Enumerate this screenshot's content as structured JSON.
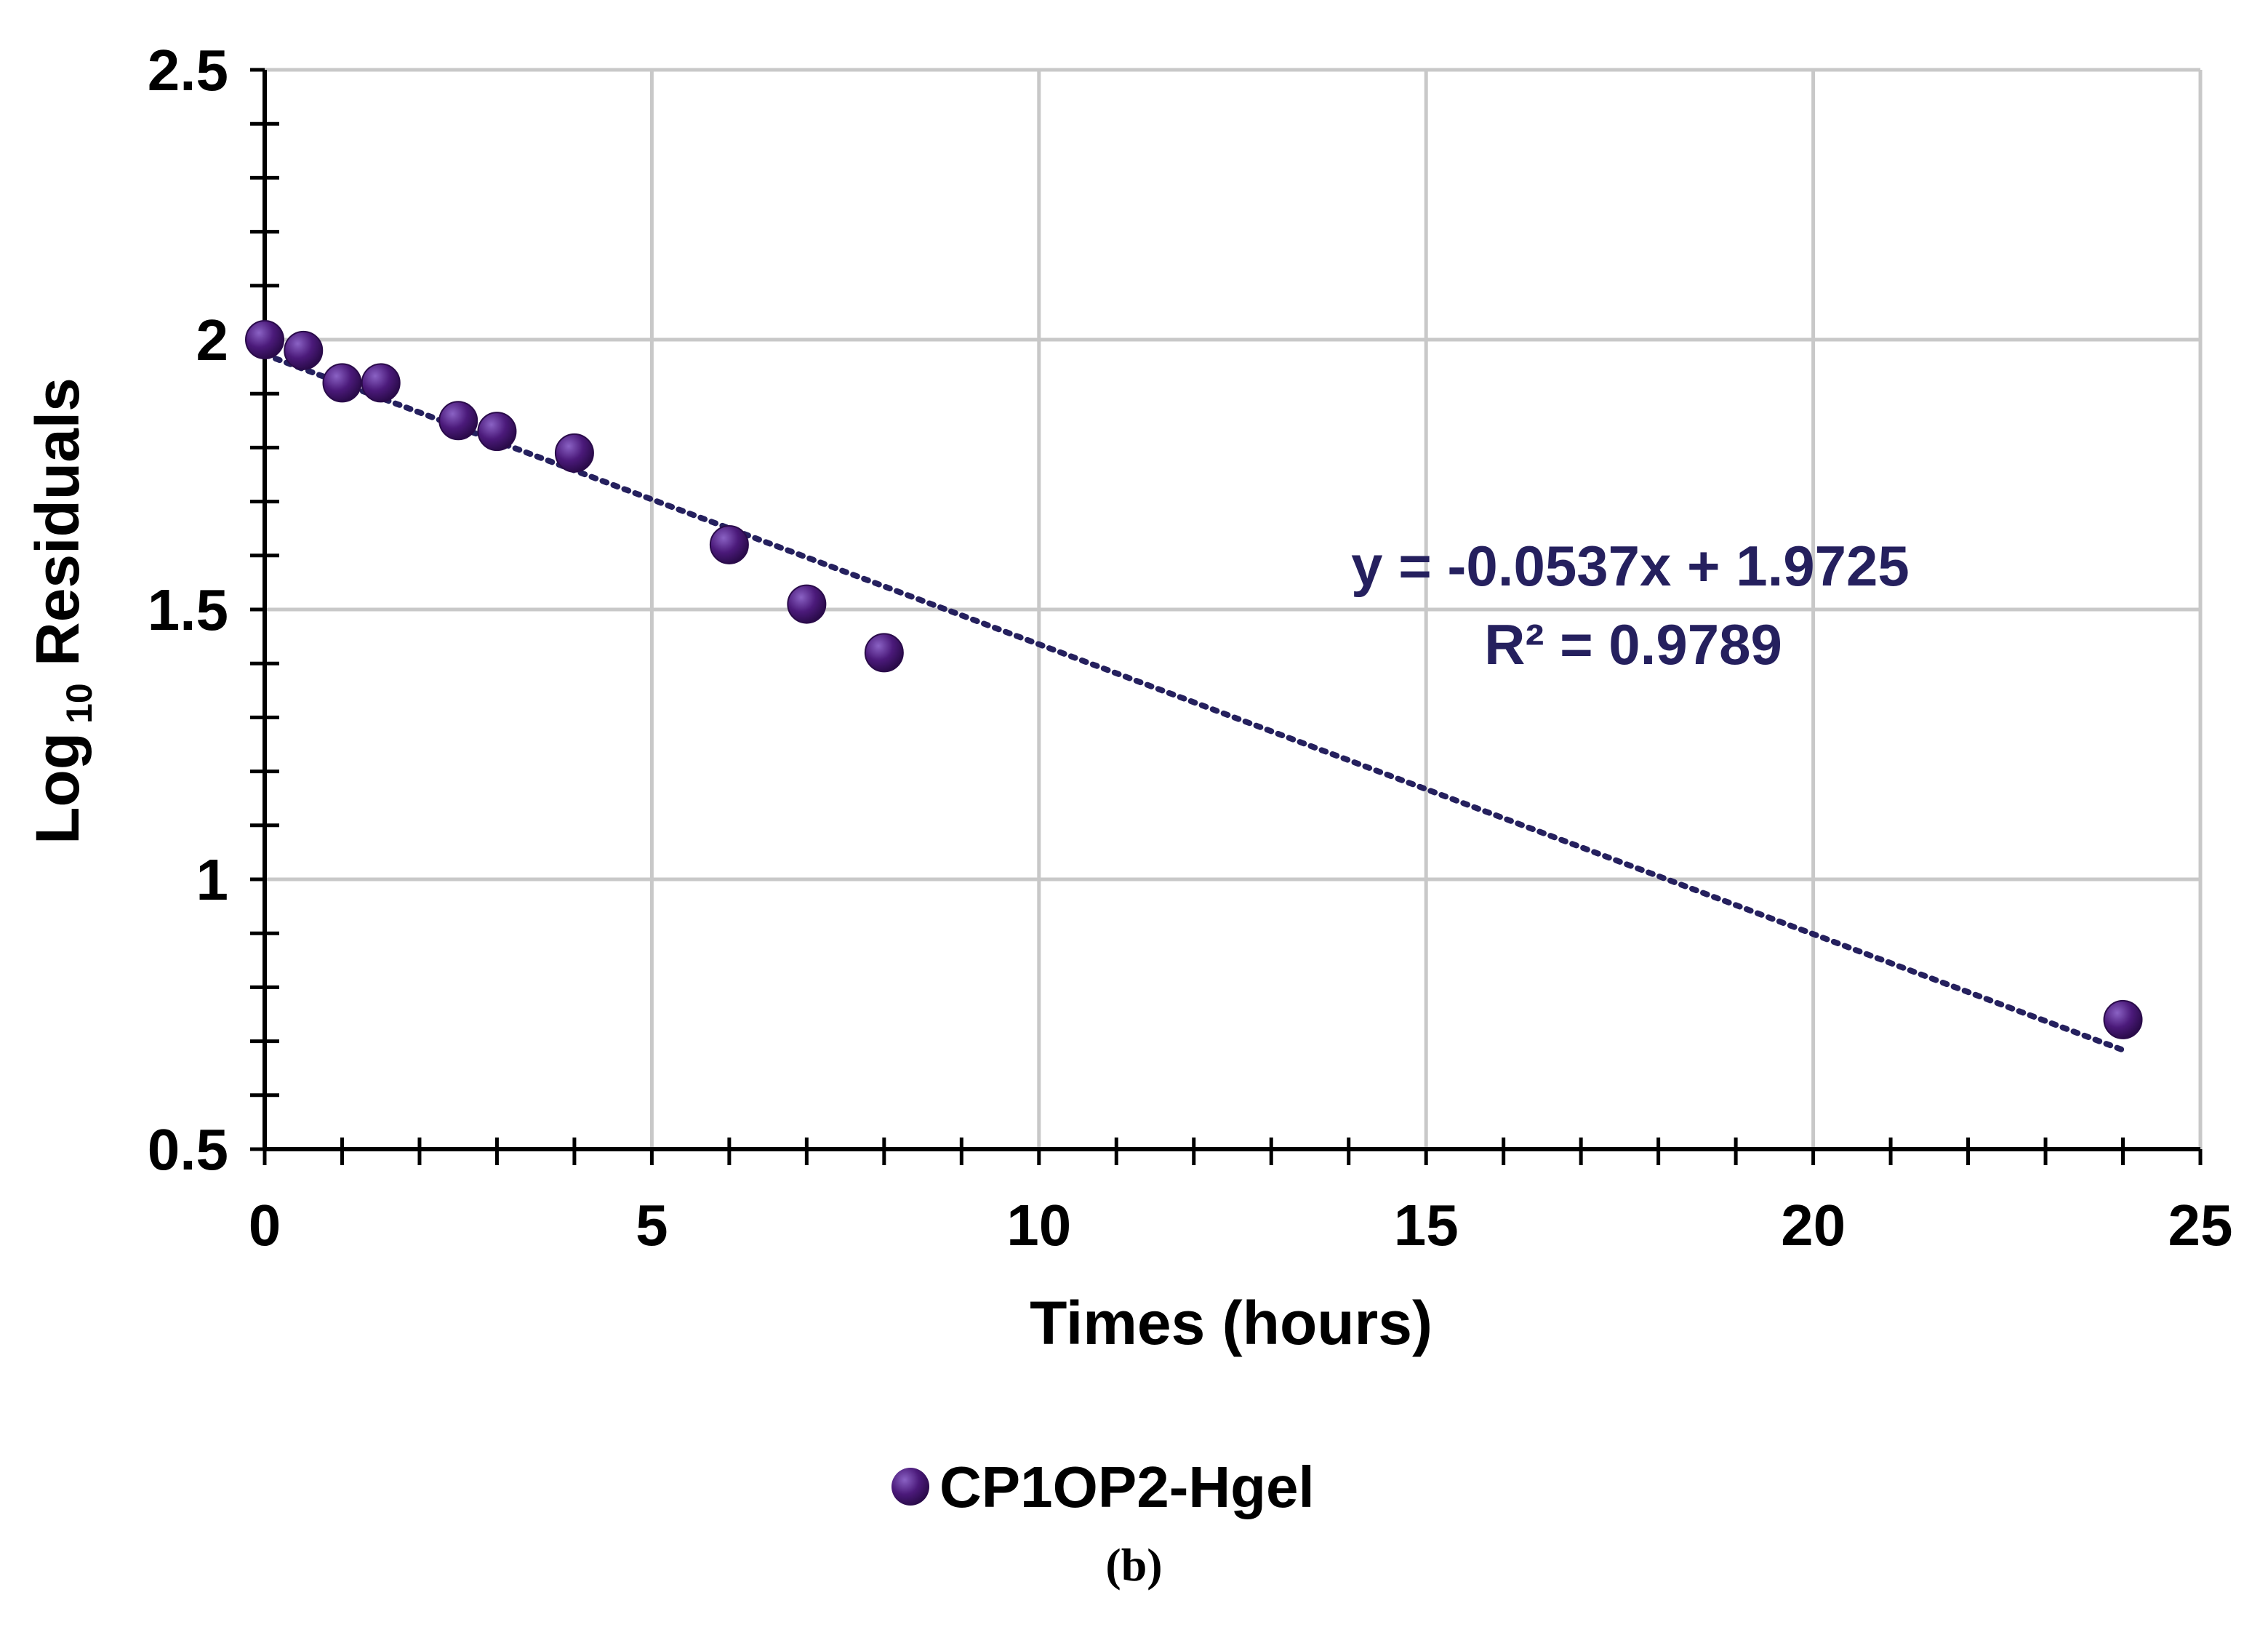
{
  "chart_data": {
    "type": "scatter",
    "title": "",
    "xlabel": "Times (hours)",
    "ylabel_main": "Log",
    "ylabel_sub": "10",
    "ylabel_tail": " Residuals",
    "xlim": [
      0,
      25
    ],
    "ylim": [
      0.5,
      2.5
    ],
    "x_ticks": [
      0,
      5,
      10,
      15,
      20,
      25
    ],
    "y_ticks": [
      0.5,
      1,
      1.5,
      2,
      2.5
    ],
    "x_tick_labels": [
      "0",
      "5",
      "10",
      "15",
      "20",
      "25"
    ],
    "y_tick_labels": [
      "0.5",
      "1",
      "1.5",
      "2",
      "2.5"
    ],
    "x_minor_step": 0.5,
    "y_minor_step": 0.1,
    "grid": true,
    "legend_position": "bottom-center",
    "series": [
      {
        "name": "CP1OP2-Hgel",
        "color": "#4b1a7a",
        "x": [
          0,
          0.5,
          1,
          1.5,
          2.5,
          3,
          4,
          6,
          7,
          8,
          24
        ],
        "y": [
          2.0,
          1.98,
          1.92,
          1.92,
          1.85,
          1.83,
          1.79,
          1.62,
          1.51,
          1.42,
          0.74
        ]
      }
    ],
    "trendline": {
      "type": "linear",
      "slope": -0.0537,
      "intercept": 1.9725,
      "x_range": [
        0,
        24
      ],
      "color": "#25205e",
      "equation": "y = -0.0537x + 1.9725",
      "r_squared": "R² = 0.9789"
    }
  },
  "caption": "(b)"
}
